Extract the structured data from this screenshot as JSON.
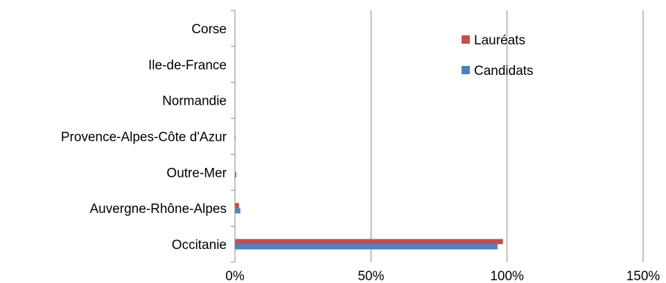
{
  "chart_data": {
    "type": "bar",
    "orientation": "horizontal",
    "categories": [
      "Occitanie",
      "Auvergne-Rhône-Alpes",
      "Outre-Mer",
      "Provence-Alpes-Côte d'Azur",
      "Normandie",
      "Ile-de-France",
      "Corse"
    ],
    "series": [
      {
        "name": "Lauréats",
        "color": "#C0504D",
        "values": [
          98.5,
          1.5,
          0.0,
          0.0,
          0.0,
          0.0,
          0.0
        ]
      },
      {
        "name": "Candidats",
        "color": "#4F81BD",
        "values": [
          96.5,
          2.0,
          0.5,
          0.2,
          0.1,
          0.1,
          0.1
        ]
      }
    ],
    "x_ticks": [
      "0%",
      "50%",
      "100%",
      "150%"
    ],
    "xlim": [
      0,
      150
    ],
    "grid": true,
    "legend_position": "top-right",
    "title": "",
    "xlabel": "",
    "ylabel": ""
  }
}
